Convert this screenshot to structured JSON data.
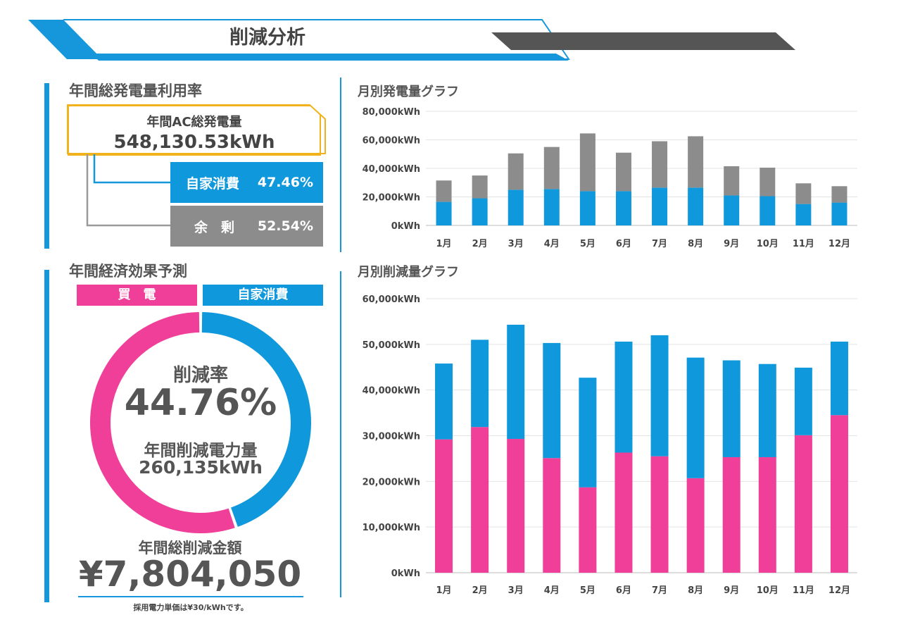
{
  "header": {
    "title": "削減分析"
  },
  "utilization": {
    "title": "年間総発電量利用率",
    "ac_label": "年間AC総発電量",
    "ac_value": "548,130.53kWh",
    "self_label": "自家消費",
    "self_value": "47.46%",
    "surplus_label": "余　剰",
    "surplus_value": "52.54%"
  },
  "economy": {
    "title": "年間経済効果予測",
    "legend_buy": "買電",
    "legend_self": "自家消費",
    "rate_label": "削減率",
    "rate_value": "44.76%",
    "reduction_label": "年間削減電力量",
    "reduction_value": "260,135kWh",
    "amount_label": "年間総削減金額",
    "amount_value": "¥7,804,050",
    "note": "採用電力単価は¥30/kWhです。",
    "donut": {
      "buy_percent": 55.24,
      "self_percent": 44.76
    },
    "colors": {
      "buy": "#ef3f99",
      "self": "#0f98dc"
    }
  },
  "chart_data": [
    {
      "type": "bar",
      "stacked": true,
      "title": "月別発電量グラフ",
      "categories": [
        "1月",
        "2月",
        "3月",
        "4月",
        "5月",
        "6月",
        "7月",
        "8月",
        "9月",
        "10月",
        "11月",
        "12月"
      ],
      "series": [
        {
          "color": "#0f98dc",
          "values": [
            16500,
            19000,
            25000,
            25500,
            24000,
            24000,
            26500,
            26500,
            21000,
            20500,
            15000,
            16000
          ]
        },
        {
          "color": "#8c8c8c",
          "values": [
            15000,
            16000,
            25500,
            29500,
            40500,
            27000,
            32500,
            36000,
            20500,
            20000,
            14500,
            11500
          ]
        }
      ],
      "ylim": [
        0,
        80000
      ],
      "yticks": [
        "0kWh",
        "20,000kWh",
        "40,000kWh",
        "60,000kWh",
        "80,000kWh"
      ],
      "grid": true
    },
    {
      "type": "bar",
      "stacked": true,
      "title": "月別削減量グラフ",
      "categories": [
        "1月",
        "2月",
        "3月",
        "4月",
        "5月",
        "6月",
        "7月",
        "8月",
        "9月",
        "10月",
        "11月",
        "12月"
      ],
      "series": [
        {
          "color": "#ef3f99",
          "values": [
            29200,
            31900,
            29300,
            25100,
            18700,
            26300,
            25500,
            20700,
            25300,
            25300,
            30100,
            34500
          ]
        },
        {
          "color": "#0f98dc",
          "values": [
            16600,
            19100,
            25000,
            25200,
            24000,
            24300,
            26500,
            26400,
            21200,
            20400,
            14800,
            16100
          ]
        }
      ],
      "ylim": [
        0,
        60000
      ],
      "yticks": [
        "0kWh",
        "10,000kWh",
        "20,000kWh",
        "30,000kWh",
        "40,000kWh",
        "50,000kWh",
        "60,000kWh"
      ],
      "grid": true
    }
  ]
}
